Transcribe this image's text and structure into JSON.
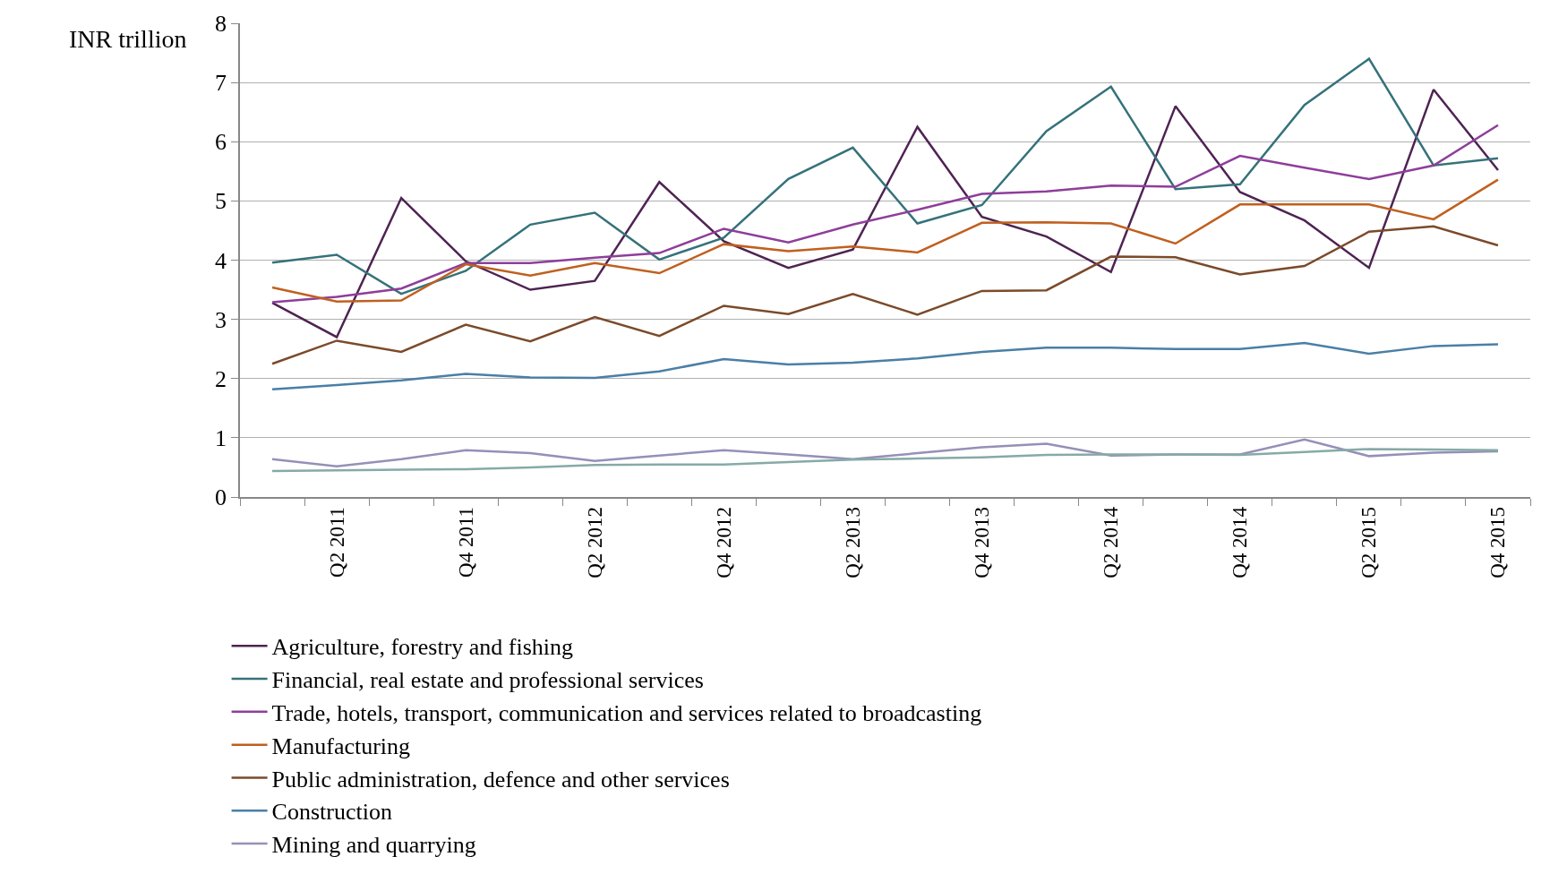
{
  "chart_data": {
    "type": "line",
    "ylabel": "INR trillion",
    "categories": [
      null,
      "Q2 2011",
      null,
      "Q4 2011",
      null,
      "Q2 2012",
      null,
      "Q4 2012",
      null,
      "Q2 2013",
      null,
      "Q4 2013",
      null,
      "Q2 2014",
      null,
      "Q4 2014",
      null,
      "Q2 2015",
      null,
      "Q4 2015"
    ],
    "series": [
      {
        "name": "Agriculture, forestry and fishing",
        "color": "#4e2352",
        "values": [
          3.28,
          2.7,
          5.05,
          3.98,
          3.5,
          3.65,
          5.32,
          4.32,
          3.87,
          4.18,
          6.25,
          4.73,
          4.4,
          3.8,
          6.6,
          5.15,
          4.67,
          3.87,
          6.88,
          5.52
        ]
      },
      {
        "name": "Financial, real estate and professional services",
        "color": "#35727a",
        "values": [
          3.96,
          4.09,
          3.43,
          3.82,
          4.6,
          4.8,
          4.01,
          4.38,
          5.37,
          5.9,
          4.62,
          4.93,
          6.18,
          6.93,
          5.2,
          5.28,
          6.62,
          7.4,
          5.6,
          5.72
        ]
      },
      {
        "name": "Trade, hotels, transport, communication and services related to broadcasting",
        "color": "#8e3e9a",
        "values": [
          3.29,
          3.38,
          3.52,
          3.95,
          3.95,
          4.04,
          4.12,
          4.53,
          4.3,
          4.6,
          4.85,
          5.12,
          5.16,
          5.26,
          5.24,
          5.76,
          5.56,
          5.37,
          5.6,
          6.28
        ]
      },
      {
        "name": "Manufacturing",
        "color": "#c0601f",
        "values": [
          3.54,
          3.3,
          3.32,
          3.93,
          3.74,
          3.95,
          3.78,
          4.27,
          4.15,
          4.23,
          4.13,
          4.63,
          4.64,
          4.62,
          4.28,
          4.94,
          4.94,
          4.94,
          4.69,
          5.36
        ]
      },
      {
        "name": "Public administration, defence and other services",
        "color": "#7b4a2a",
        "values": [
          2.25,
          2.64,
          2.45,
          2.91,
          2.63,
          3.04,
          2.72,
          3.23,
          3.09,
          3.43,
          3.08,
          3.48,
          3.49,
          4.06,
          4.05,
          3.76,
          3.9,
          4.48,
          4.57,
          4.25
        ]
      },
      {
        "name": "Construction",
        "color": "#4a7fa6",
        "values": [
          1.82,
          1.89,
          1.97,
          2.08,
          2.02,
          2.01,
          2.12,
          2.33,
          2.24,
          2.27,
          2.34,
          2.45,
          2.52,
          2.52,
          2.5,
          2.5,
          2.6,
          2.42,
          2.55,
          2.58
        ]
      },
      {
        "name": "Mining and quarrying",
        "color": "#9490b8",
        "values": [
          0.64,
          0.52,
          0.64,
          0.79,
          0.74,
          0.61,
          0.7,
          0.79,
          0.72,
          0.64,
          0.74,
          0.84,
          0.9,
          0.7,
          0.72,
          0.72,
          0.97,
          0.69,
          0.75,
          0.77
        ]
      },
      {
        "color": "#86aaa7",
        "values": [
          0.44,
          0.45,
          0.46,
          0.47,
          0.5,
          0.54,
          0.55,
          0.55,
          0.59,
          0.63,
          0.65,
          0.67,
          0.71,
          0.72,
          0.72,
          0.71,
          0.76,
          0.81,
          0.8,
          0.79
        ]
      }
    ],
    "ylim": [
      0,
      8
    ],
    "yticks": [
      0,
      1,
      2,
      3,
      4,
      5,
      6,
      7,
      8
    ],
    "grid": "y",
    "legend": "bottom",
    "marker": "none",
    "line_style": "solid"
  }
}
